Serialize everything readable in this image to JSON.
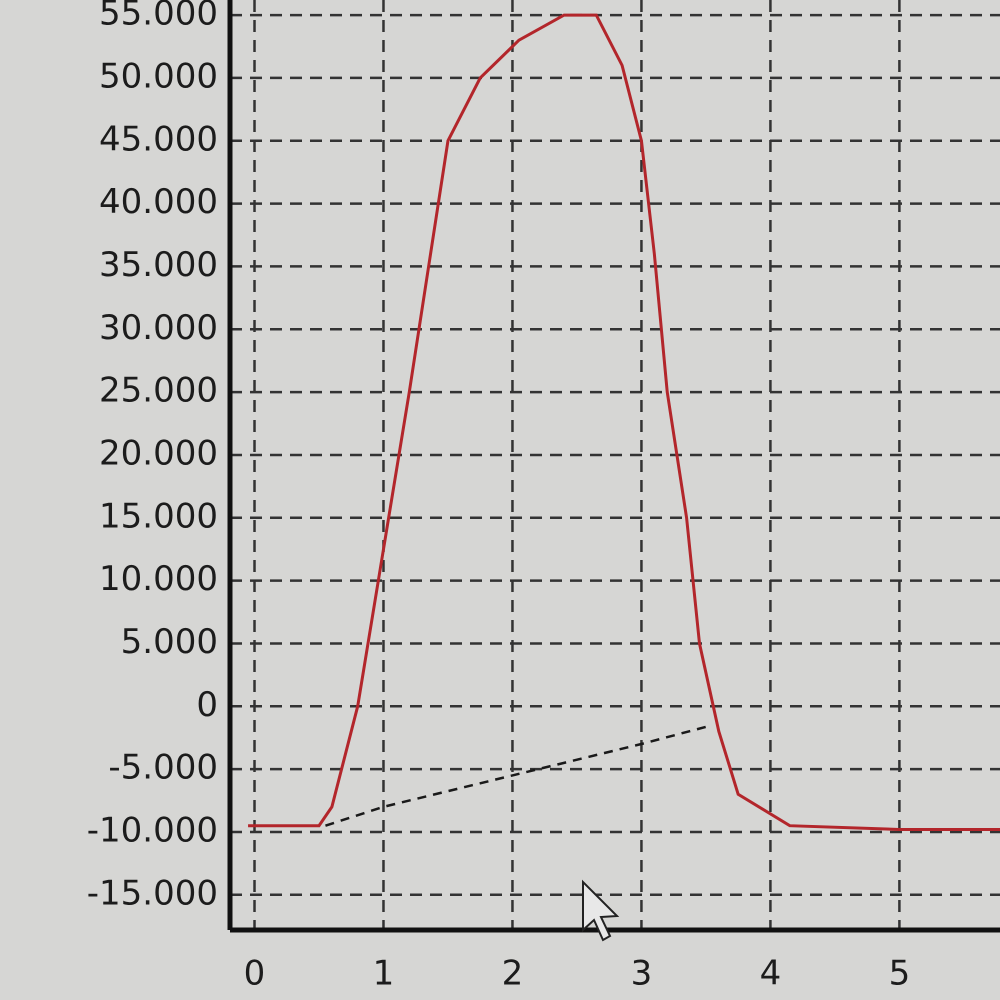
{
  "chart_data": {
    "type": "line",
    "series": [
      {
        "color": "#b3262b",
        "x": [
          -0.05,
          0.5,
          0.6,
          0.8,
          1.04,
          1.2,
          1.35,
          1.5,
          1.75,
          2.05,
          2.4,
          2.65,
          2.85,
          3.0,
          3.1,
          3.2,
          3.35,
          3.45,
          3.6,
          3.75,
          4.15,
          5.0,
          5.78
        ],
        "values": [
          -9500,
          -9500,
          -8000,
          0,
          15000,
          25000,
          35000,
          45000,
          50000,
          53000,
          55000,
          55000,
          51000,
          45000,
          36000,
          25000,
          15000,
          5000,
          -2000,
          -7000,
          -9500,
          -9800,
          -9800
        ]
      },
      {
        "color": "#1a1a1a",
        "dashed": true,
        "x": [
          0.55,
          1.0,
          2.0,
          3.0,
          3.55
        ],
        "values": [
          -9500,
          -8000,
          -5500,
          -3000,
          -1500
        ]
      }
    ],
    "xlim": [
      -0.19,
      5.78
    ],
    "xticks": [
      0,
      1,
      2,
      3,
      4,
      5
    ],
    "ylim": [
      -17800,
      56200
    ],
    "yticks": [
      {
        "value": 55000,
        "label": "55.000"
      },
      {
        "value": 50000,
        "label": "50.000"
      },
      {
        "value": 45000,
        "label": "45.000"
      },
      {
        "value": 40000,
        "label": "40.000"
      },
      {
        "value": 35000,
        "label": "35.000"
      },
      {
        "value": 30000,
        "label": "30.000"
      },
      {
        "value": 25000,
        "label": "25.000"
      },
      {
        "value": 20000,
        "label": "20.000"
      },
      {
        "value": 15000,
        "label": "15.000"
      },
      {
        "value": 10000,
        "label": "10.000"
      },
      {
        "value": 5000,
        "label": "5.000"
      },
      0,
      {
        "value": -5000,
        "label": "-5.000"
      },
      {
        "value": -10000,
        "label": "-10.000"
      },
      {
        "value": -15000,
        "label": "-15.000"
      }
    ],
    "grid": true
  }
}
